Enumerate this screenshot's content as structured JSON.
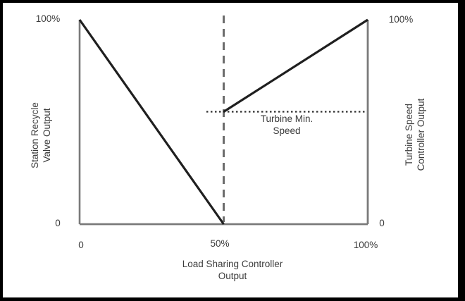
{
  "figure": {
    "left_axis": {
      "top_tick_label": "100%",
      "bottom_tick_label": "0",
      "title": "Station Recycle\nValve Output"
    },
    "right_axis": {
      "top_tick_label": "100%",
      "bottom_tick_label": "0",
      "title": "Turbine Speed\nController Output"
    },
    "x_axis": {
      "tick_labels": [
        "0",
        "50%",
        "100%"
      ],
      "title": "Load Sharing Controller\nOutput"
    },
    "annotations": {
      "turbine_min_label": "Turbine Min.\nSpeed"
    }
  },
  "colors": {
    "background": "#ffffff",
    "frame": "#000000",
    "text": "#3b3b3b",
    "axis": "#7a7a7a",
    "data_line": "#1f1f1f",
    "dashed_guide": "#6c6c6c",
    "dotted_guide": "#2e2e2e"
  },
  "chart_data": {
    "type": "line",
    "title": "",
    "xlabel": "Load Sharing Controller Output",
    "x_range": [
      0,
      100
    ],
    "x_tick_values": [
      0,
      50,
      100
    ],
    "x_tick_labels": [
      "0",
      "50%",
      "100%"
    ],
    "grid": false,
    "legend": false,
    "y_axes": [
      {
        "side": "left",
        "label": "Station Recycle Valve Output",
        "range": [
          0,
          100
        ],
        "tick_labels": [
          "0",
          "100%"
        ]
      },
      {
        "side": "right",
        "label": "Turbine Speed Controller Output",
        "range": [
          0,
          100
        ],
        "tick_labels": [
          "0",
          "100%"
        ]
      }
    ],
    "series": [
      {
        "name": "Station Recycle Valve Output",
        "y_axis": "left",
        "x": [
          0,
          50
        ],
        "y": [
          100,
          0
        ]
      },
      {
        "name": "Turbine Speed Controller Output",
        "y_axis": "right",
        "x": [
          50,
          100
        ],
        "y": [
          55,
          100
        ]
      }
    ],
    "annotations": [
      {
        "type": "vline",
        "style": "dashed",
        "x": 50
      },
      {
        "type": "hline",
        "style": "dotted",
        "y": 55,
        "y_axis": "right",
        "x_start": 44,
        "x_end": 100,
        "label": "Turbine Min. Speed"
      }
    ]
  }
}
